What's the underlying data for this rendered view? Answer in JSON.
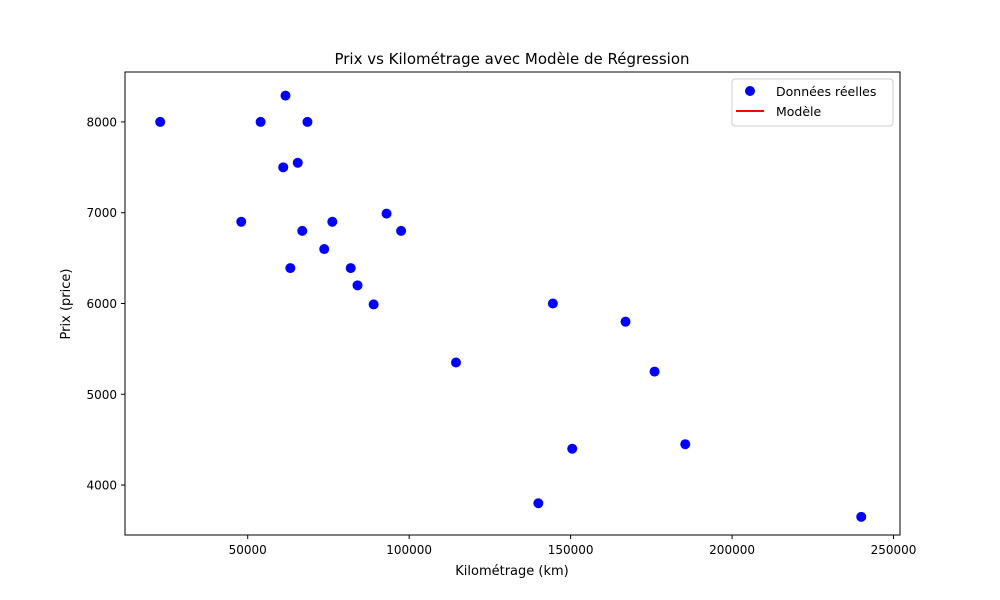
{
  "chart_data": {
    "type": "scatter",
    "title": "Prix vs Kilométrage avec Modèle de Régression",
    "xlabel": "Kilométrage (km)",
    "ylabel": "Prix (price)",
    "xlim": [
      12000,
      252000
    ],
    "ylim": [
      3450,
      8550
    ],
    "xticks": [
      50000,
      100000,
      150000,
      200000,
      250000
    ],
    "yticks": [
      4000,
      5000,
      6000,
      7000,
      8000
    ],
    "grid": false,
    "legend_position": "top-right",
    "series": [
      {
        "name": "Données réelles",
        "kind": "scatter",
        "color": "#0000ff",
        "points": [
          {
            "x": 22900,
            "y": 8000
          },
          {
            "x": 48000,
            "y": 6900
          },
          {
            "x": 54000,
            "y": 8000
          },
          {
            "x": 61000,
            "y": 7500
          },
          {
            "x": 61700,
            "y": 8290
          },
          {
            "x": 63200,
            "y": 6390
          },
          {
            "x": 65500,
            "y": 7550
          },
          {
            "x": 66900,
            "y": 6800
          },
          {
            "x": 68500,
            "y": 8000
          },
          {
            "x": 73700,
            "y": 6600
          },
          {
            "x": 76200,
            "y": 6900
          },
          {
            "x": 81900,
            "y": 6390
          },
          {
            "x": 84000,
            "y": 6200
          },
          {
            "x": 89000,
            "y": 5990
          },
          {
            "x": 93000,
            "y": 6990
          },
          {
            "x": 97500,
            "y": 6800
          },
          {
            "x": 114500,
            "y": 5350
          },
          {
            "x": 140000,
            "y": 3800
          },
          {
            "x": 144500,
            "y": 6000
          },
          {
            "x": 150500,
            "y": 4400
          },
          {
            "x": 167000,
            "y": 5800
          },
          {
            "x": 176000,
            "y": 5250
          },
          {
            "x": 185500,
            "y": 4450
          },
          {
            "x": 240000,
            "y": 3650
          }
        ]
      },
      {
        "name": "Modèle",
        "kind": "line",
        "color": "#ff0000",
        "points": []
      }
    ]
  }
}
